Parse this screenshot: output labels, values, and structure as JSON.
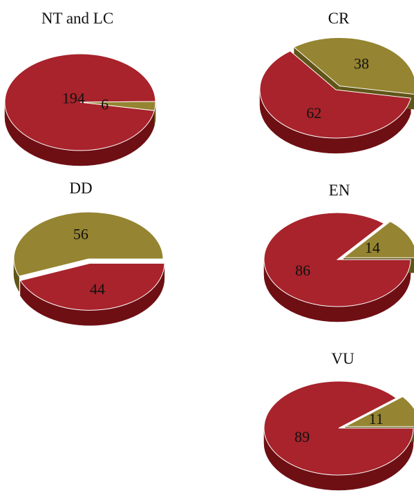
{
  "chart_data": [
    {
      "type": "pie",
      "title": "NT and LC",
      "series": [
        {
          "label": "194",
          "value": 194,
          "color": "#A8232B",
          "side": "#6E0F14"
        },
        {
          "label": "6",
          "value": 6,
          "color": "#958431",
          "side": "#605518"
        }
      ]
    },
    {
      "type": "pie",
      "title": "CR",
      "series": [
        {
          "label": "62",
          "value": 62,
          "color": "#A8232B",
          "side": "#6E0F14"
        },
        {
          "label": "38",
          "value": 38,
          "color": "#958431",
          "side": "#605518"
        }
      ]
    },
    {
      "type": "pie",
      "title": "DD",
      "series": [
        {
          "label": "44",
          "value": 44,
          "color": "#A8232B",
          "side": "#6E0F14"
        },
        {
          "label": "56",
          "value": 56,
          "color": "#958431",
          "side": "#605518"
        }
      ]
    },
    {
      "type": "pie",
      "title": "EN",
      "series": [
        {
          "label": "86",
          "value": 86,
          "color": "#A8232B",
          "side": "#6E0F14"
        },
        {
          "label": "14",
          "value": 14,
          "color": "#958431",
          "side": "#605518"
        }
      ]
    },
    {
      "type": "pie",
      "title": "VU",
      "series": [
        {
          "label": "89",
          "value": 89,
          "color": "#A8232B",
          "side": "#6E0F14"
        },
        {
          "label": "11",
          "value": 11,
          "color": "#958431",
          "side": "#605518"
        }
      ]
    }
  ]
}
